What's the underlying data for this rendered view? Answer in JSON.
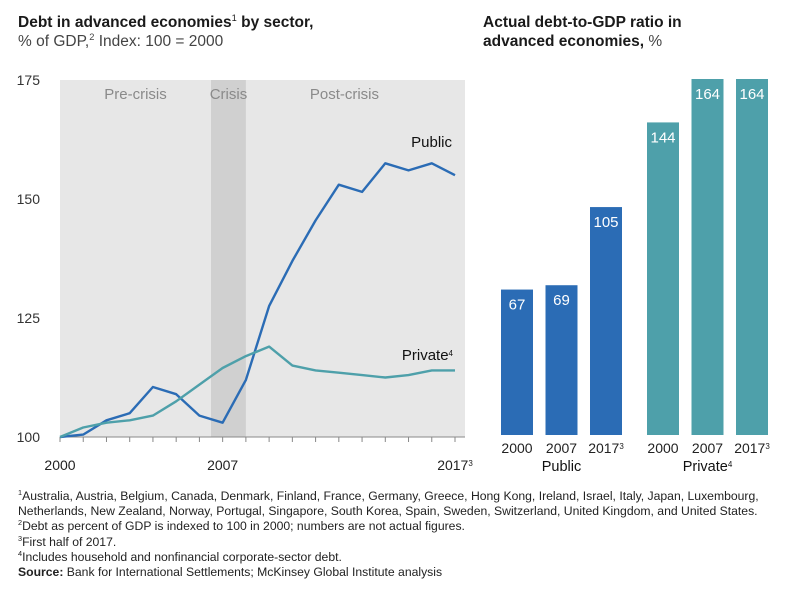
{
  "left_chart": {
    "title": "Debt in advanced economies",
    "title_rest": " by sector,",
    "title_sup": "1",
    "subtitle_a": "% of GDP,",
    "subtitle_sup": "2",
    "subtitle_b": " Index: 100 = 2000"
  },
  "right_chart": {
    "title_line1": "Actual debt-to-GDP ratio in",
    "title_line2": "advanced economies,",
    "title_unit": " %"
  },
  "chart_data": [
    {
      "type": "line",
      "title": "Debt in advanced economies by sector",
      "subtitle": "% of GDP, Index: 100 = 2000",
      "ylim": [
        100,
        175
      ],
      "yticks": [
        "100",
        "125",
        "150",
        "175"
      ],
      "xticks": [
        "2000",
        "2007",
        "2017"
      ],
      "xtick_last_sup": "3",
      "grid": false,
      "periods": [
        {
          "label": "Pre-crisis",
          "x": [
            0,
            13
          ]
        },
        {
          "label": "Crisis",
          "x": [
            13,
            16
          ]
        },
        {
          "label": "Post-crisis",
          "x": [
            16,
            34
          ]
        }
      ],
      "series": [
        {
          "name": "Public",
          "name_sup": "",
          "color": "#2b6cb5",
          "x": [
            0,
            2,
            4,
            6,
            8,
            10,
            12,
            14,
            16,
            18,
            20,
            22,
            24,
            26,
            28,
            30,
            32,
            34
          ],
          "values": [
            100,
            100.5,
            103.5,
            105,
            110.5,
            109,
            104.5,
            103,
            112,
            127.5,
            137,
            145.5,
            153,
            151.5,
            157.5,
            156,
            157.5,
            155
          ]
        },
        {
          "name": "Private",
          "name_sup": "4",
          "color": "#4ea0aa",
          "x": [
            0,
            2,
            4,
            6,
            8,
            10,
            12,
            14,
            16,
            18,
            20,
            22,
            24,
            26,
            28,
            30,
            32,
            34
          ],
          "values": [
            100,
            102,
            103,
            103.5,
            104.5,
            107.5,
            111,
            114.5,
            117,
            119,
            115,
            114,
            113.5,
            113,
            112.5,
            113,
            114,
            114
          ]
        }
      ]
    },
    {
      "type": "bar",
      "title": "Actual debt-to-GDP ratio in advanced economies, %",
      "ylim": [
        0,
        164
      ],
      "groups": [
        {
          "name": "Public",
          "name_sup": "",
          "color": "#2b6cb5",
          "categories": [
            "2000",
            "2007",
            "2017"
          ],
          "category_sups": [
            "",
            "",
            "3"
          ],
          "values": [
            67,
            69,
            105
          ]
        },
        {
          "name": "Private",
          "name_sup": "4",
          "color": "#4ea0aa",
          "categories": [
            "2000",
            "2007",
            "2017"
          ],
          "category_sups": [
            "",
            "",
            "3"
          ],
          "values": [
            144,
            164,
            164
          ]
        }
      ]
    }
  ],
  "footnotes": {
    "note1_sup": "1",
    "note1": "Australia, Austria, Belgium, Canada, Denmark, Finland, France, Germany, Greece, Hong Kong, Ireland, Israel, Italy, Japan, Luxembourg, Netherlands, New Zealand, Norway, Portugal, Singapore, South Korea, Spain, Sweden, Switzerland, United Kingdom, and United States.",
    "note2_sup": "2",
    "note2": "Debt as percent of GDP is indexed to 100 in 2000; numbers are not actual figures.",
    "note3_sup": "3",
    "note3": "First half of 2017.",
    "note4_sup": "4",
    "note4": "Includes household and nonfinancial corporate-sector debt.",
    "source_label": "Source:",
    "source_text": " Bank for International Settlements; McKinsey Global Institute analysis"
  }
}
